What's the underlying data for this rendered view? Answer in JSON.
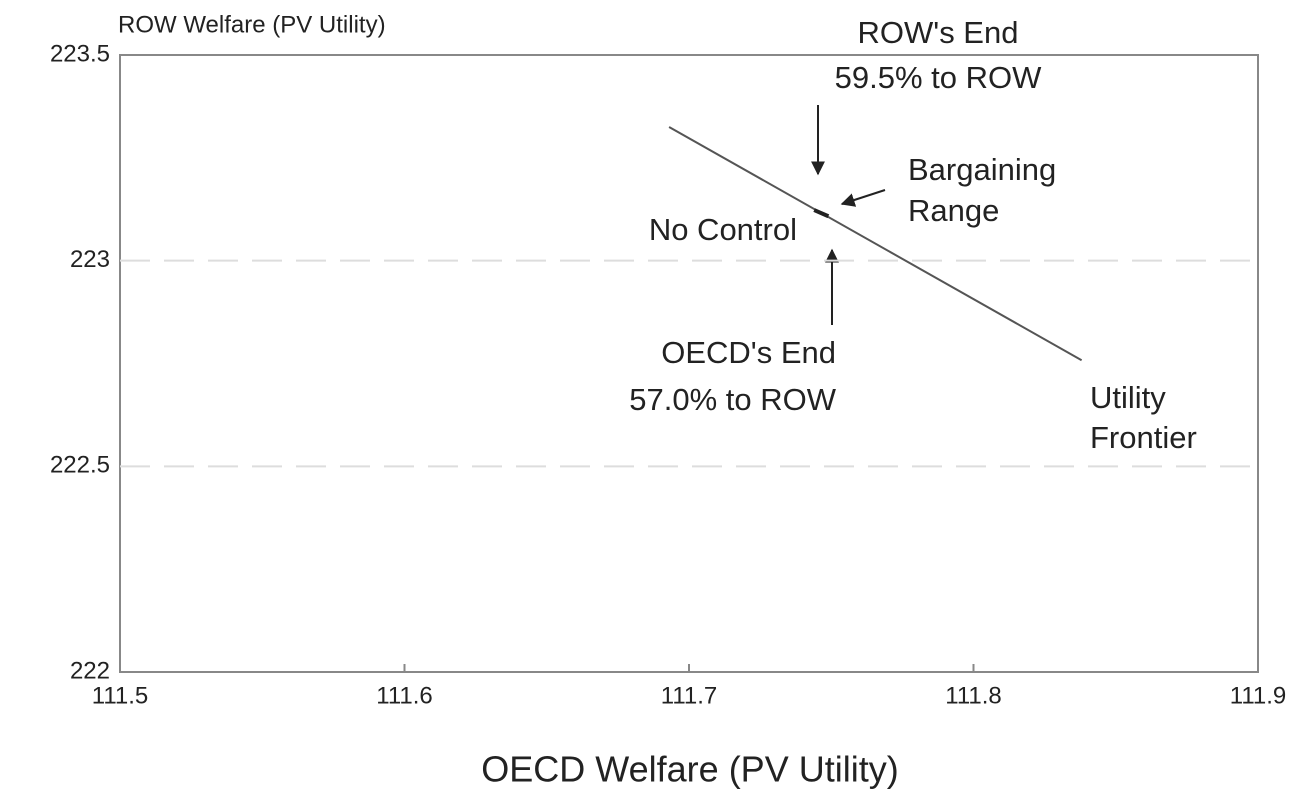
{
  "chart_data": {
    "type": "line",
    "ylabel": "ROW Welfare (PV Utility)",
    "xlabel": "OECD Welfare (PV Utility)",
    "xlim": [
      111.5,
      111.9
    ],
    "xticks": [
      111.5,
      111.6,
      111.7,
      111.8,
      111.9
    ],
    "ylim": [
      222,
      223.5
    ],
    "yticks": [
      222,
      222.5,
      223,
      223.5
    ],
    "grid": true,
    "series": [
      {
        "color": "#555555",
        "x": [
          111.693,
          111.838
        ],
        "values": [
          223.325,
          222.758
        ]
      },
      {
        "color": "#222222",
        "x": [
          111.744,
          111.749
        ],
        "values": [
          223.123,
          223.108
        ]
      }
    ],
    "annotations": [
      "ROW's End",
      "59.5% to ROW",
      "Bargaining",
      "Range",
      "No Control",
      "OECD's End",
      "57.0% to ROW",
      "Utility",
      "Frontier"
    ]
  }
}
